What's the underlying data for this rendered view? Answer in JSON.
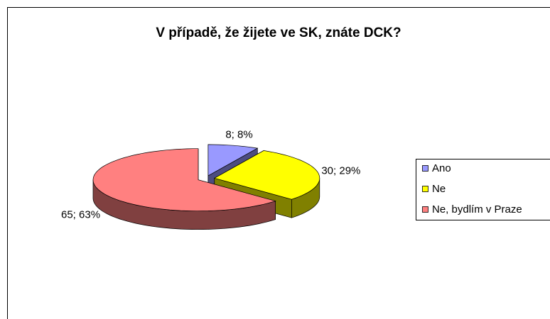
{
  "chart_data": {
    "type": "pie3d",
    "title": "V případě, že žijete ve SK, znáte DCK?",
    "categories": [
      "Ano",
      "Ne",
      "Ne, bydlím v Praze"
    ],
    "values": [
      8,
      30,
      65
    ],
    "value_labels": [
      "8; 8%",
      "30; 29%",
      "65; 63%"
    ],
    "colors": [
      "#9999ff",
      "#ffff00",
      "#ff8080"
    ],
    "side_colors": [
      "#4d4d80",
      "#808000",
      "#804040"
    ],
    "legend": "right"
  }
}
